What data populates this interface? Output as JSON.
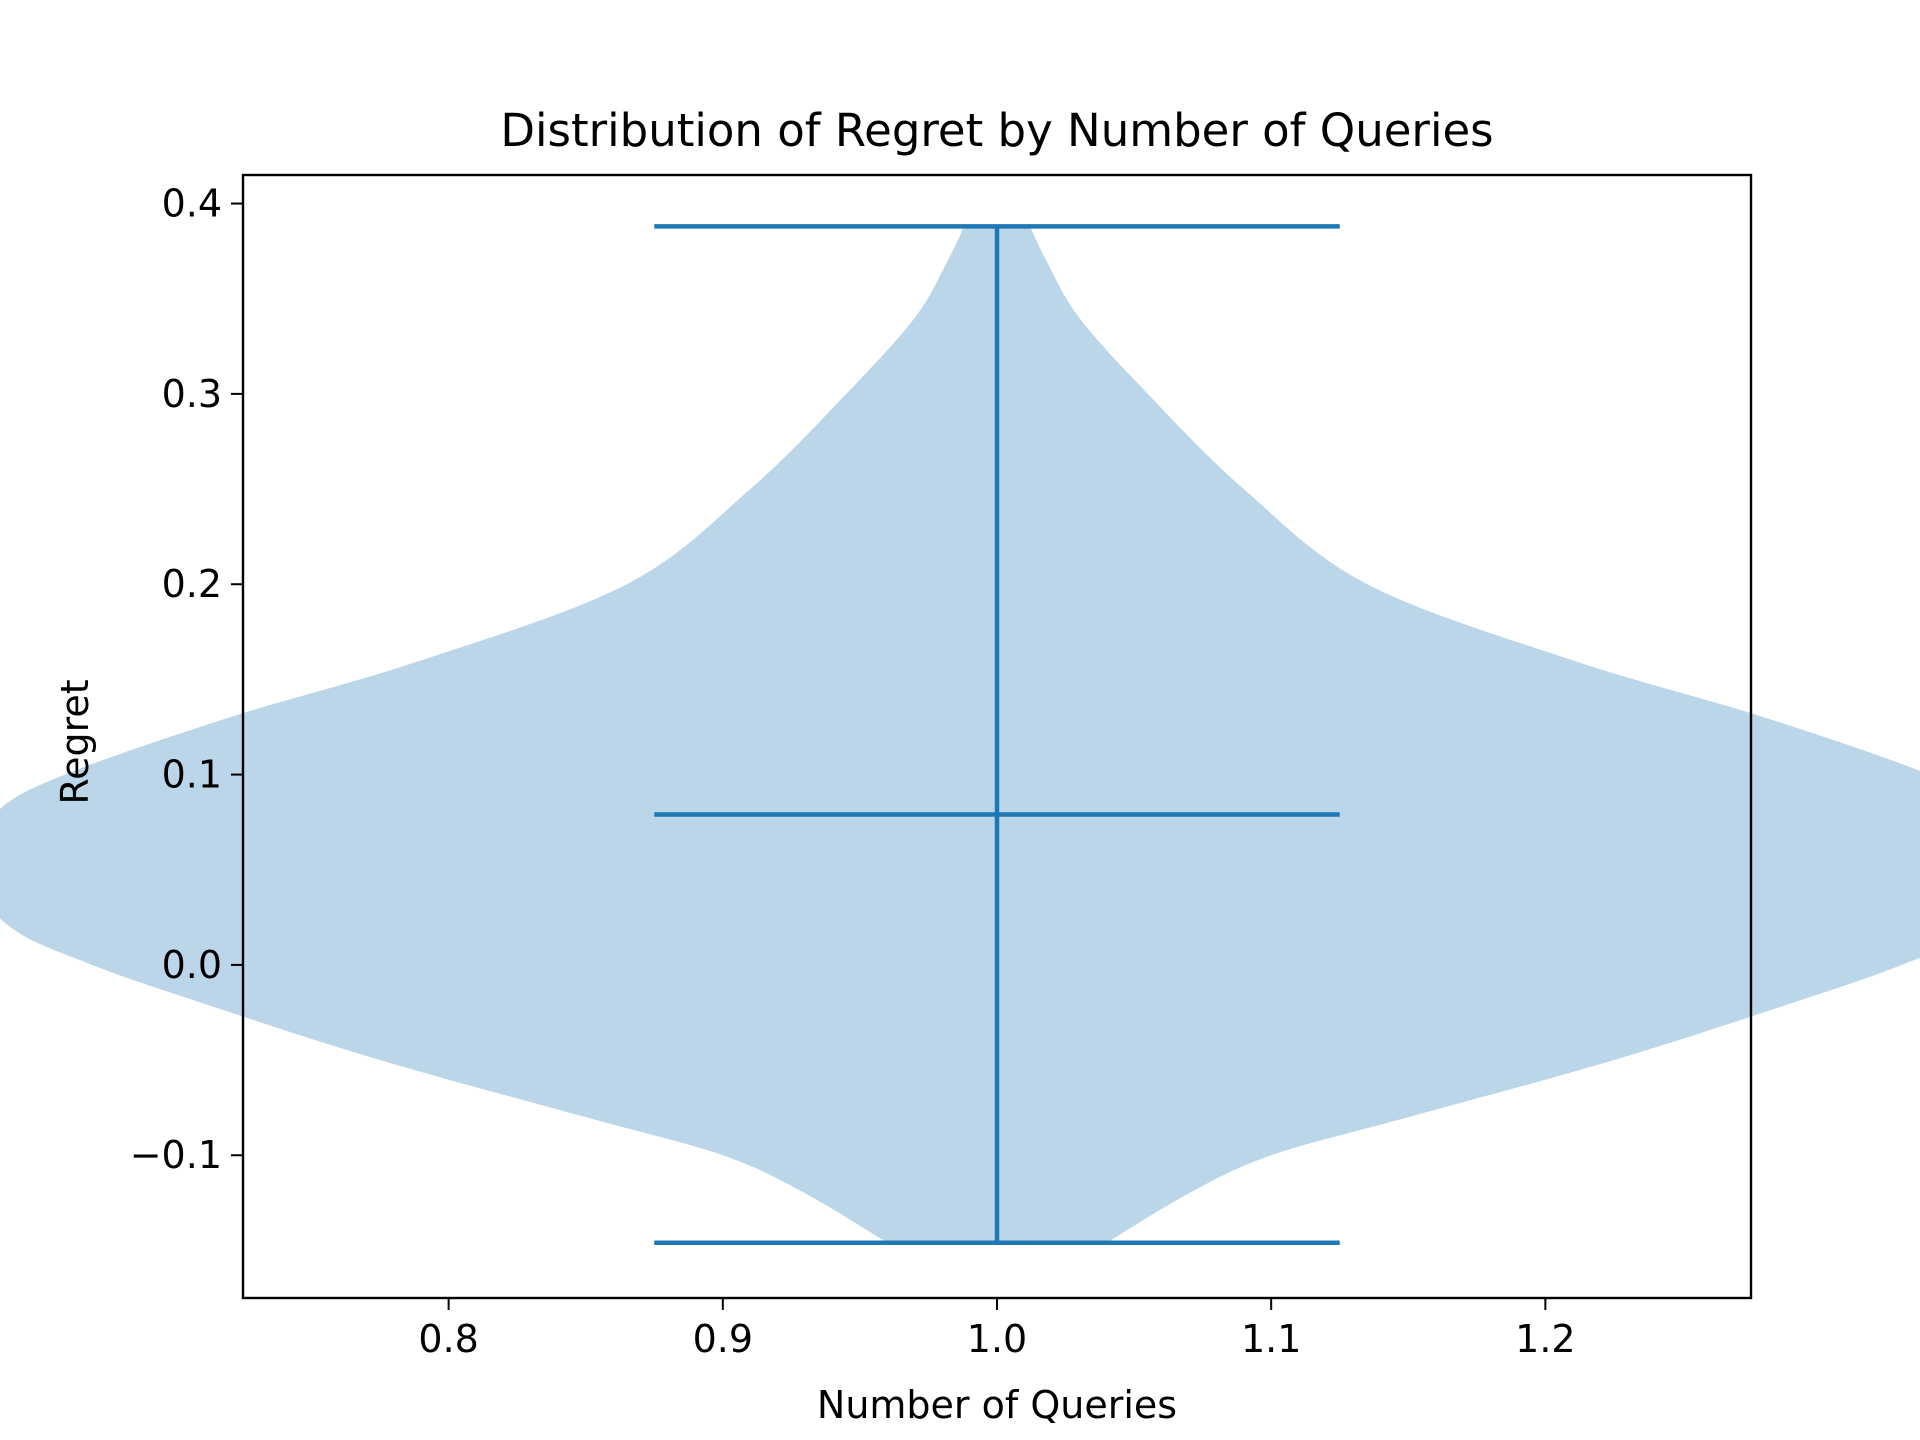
{
  "chart_data": {
    "type": "violin",
    "title": "Distribution of Regret by Number of Queries",
    "xlabel": "Number of Queries",
    "ylabel": "Regret",
    "xlim": [
      0.725,
      1.275
    ],
    "ylim": [
      -0.175,
      0.415
    ],
    "xticks": [
      0.8,
      0.9,
      1.0,
      1.1,
      1.2
    ],
    "xtick_labels": [
      "0.8",
      "0.9",
      "1.0",
      "1.1",
      "1.2"
    ],
    "yticks": [
      -0.1,
      0.0,
      0.1,
      0.2,
      0.3,
      0.4
    ],
    "ytick_labels": [
      "−0.1",
      "0.0",
      "0.1",
      "0.2",
      "0.3",
      "0.4"
    ],
    "grid": false,
    "legend": "none",
    "colors": {
      "body": "#1f77b4",
      "body_alpha": 0.3,
      "lines": "#1f77b4"
    },
    "violins": [
      {
        "position": 1.0,
        "min": -0.146,
        "max": 0.388,
        "median": 0.079,
        "cap_halfwidth": 0.125,
        "density_profile": {
          "y": [
            -0.146,
            -0.12,
            -0.1,
            -0.08,
            -0.05,
            -0.02,
            0.0,
            0.02,
            0.05,
            0.08,
            0.1,
            0.13,
            0.16,
            0.2,
            0.25,
            0.3,
            0.34,
            0.37,
            0.388
          ],
          "halfwidth": [
            0.04,
            0.07,
            0.1,
            0.15,
            0.225,
            0.29,
            0.33,
            0.36,
            0.375,
            0.365,
            0.34,
            0.28,
            0.21,
            0.135,
            0.09,
            0.055,
            0.03,
            0.018,
            0.012
          ]
        }
      }
    ]
  }
}
